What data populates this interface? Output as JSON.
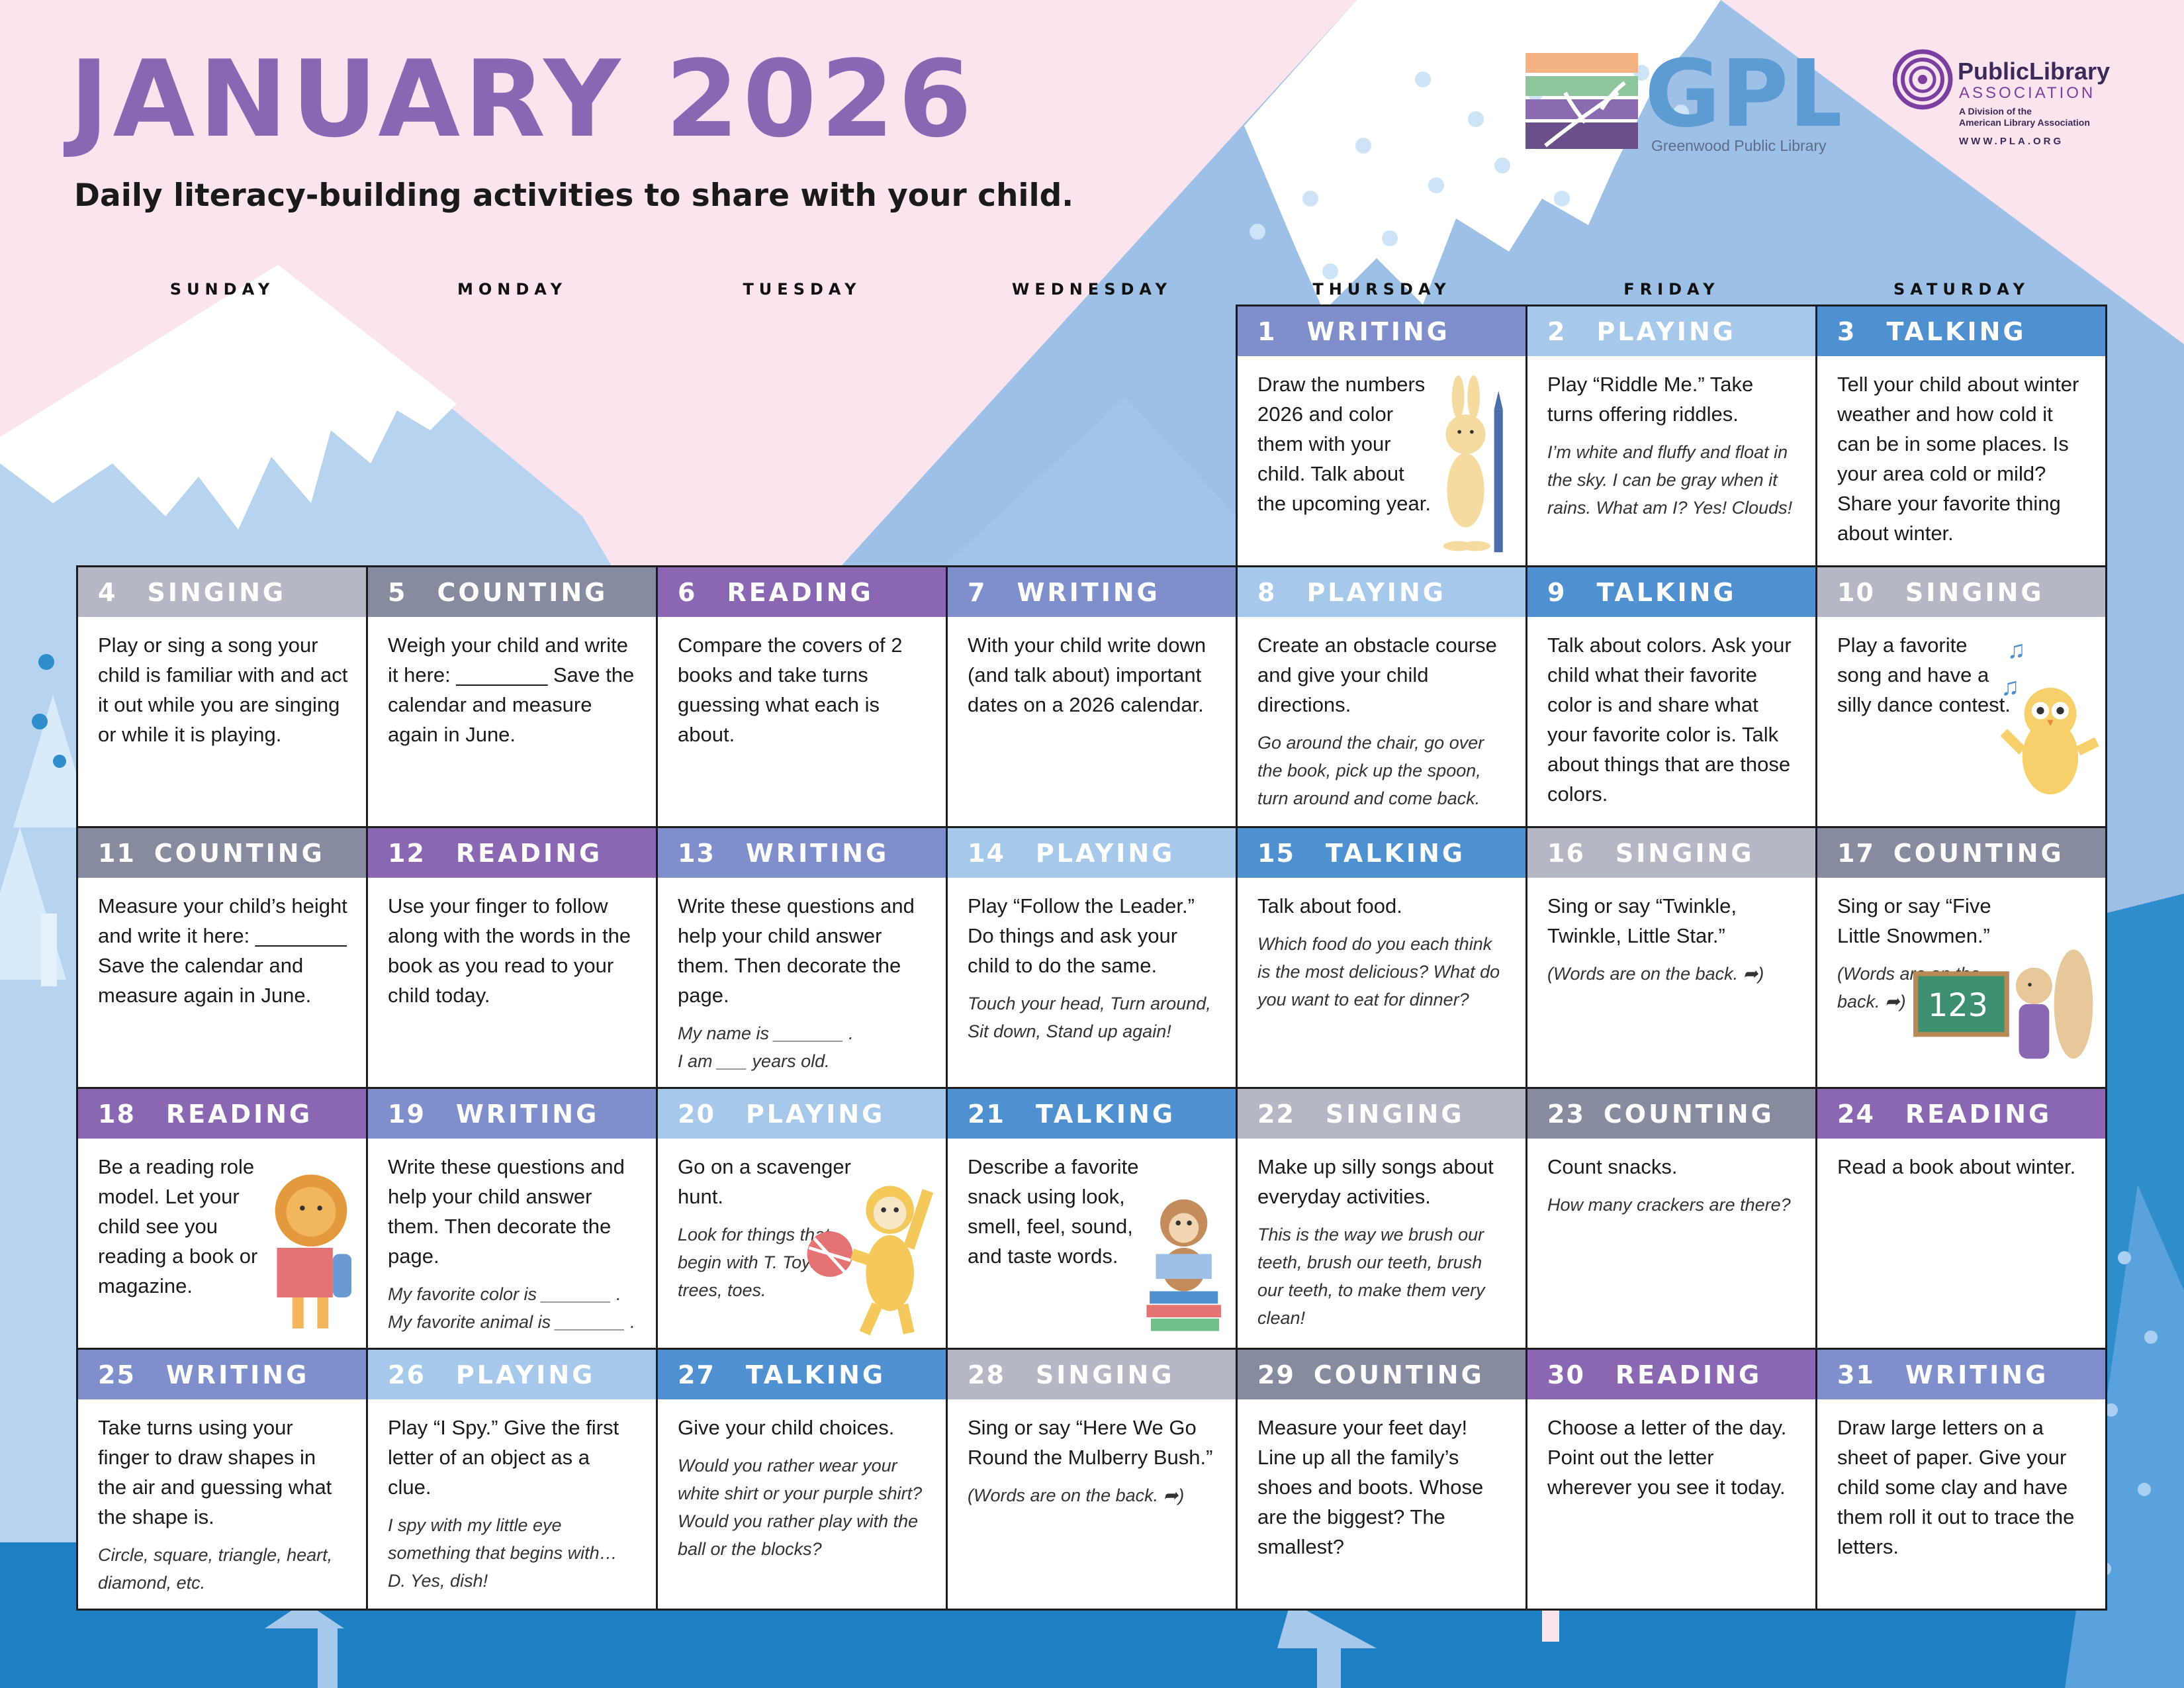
{
  "title": "JANUARY 2026",
  "subtitle": "Daily literacy-building activities to share with your child.",
  "logos": {
    "gpl": {
      "letters": "GPL",
      "name": "Greenwood Public Library"
    },
    "pla": {
      "name_line1": "PublicLibrary",
      "name_line2": "ASSOCIATION",
      "tagline1": "A Division of the",
      "tagline2": "American Library Association",
      "url": "WWW.PLA.ORG"
    }
  },
  "weekdays": [
    "SUNDAY",
    "MONDAY",
    "TUESDAY",
    "WEDNESDAY",
    "THURSDAY",
    "FRIDAY",
    "SATURDAY"
  ],
  "colors": {
    "writing": "#7f8fcc",
    "playing": "#a6c8ea",
    "talking": "#4e90d0",
    "singing": "#b5b7c4",
    "counting": "#878b9f",
    "reading": "#8a66b3",
    "title": "#8a66b3"
  },
  "days": [
    {
      "num": "1",
      "category": "WRITING",
      "text": "Draw the numbers 2026 and color them with your child. Talk about the upcoming year.",
      "italic": "",
      "illustration": "bunny-with-pencil-illustration"
    },
    {
      "num": "2",
      "category": "PLAYING",
      "text": "Play “Riddle Me.” Take turns offering riddles.",
      "italic": "I’m white and fluffy and float in the sky. I can be gray when it rains. What am I? Yes! Clouds!"
    },
    {
      "num": "3",
      "category": "TALKING",
      "text": "Tell your child about winter weather and how cold it can be in some places. Is your area cold or mild? Share your favorite thing about winter.",
      "italic": ""
    },
    {
      "num": "4",
      "category": "SINGING",
      "text": "Play or sing a song your child is familiar with and act it out while you are singing or while it is playing.",
      "italic": ""
    },
    {
      "num": "5",
      "category": "COUNTING",
      "text": "Weigh your child and write it here: ________ Save the calendar and measure again in June.",
      "italic": ""
    },
    {
      "num": "6",
      "category": "READING",
      "text": "Compare the covers of 2 books and take turns guessing what each is about.",
      "italic": ""
    },
    {
      "num": "7",
      "category": "WRITING",
      "text": "With your child write down (and talk about) important dates on a 2026 calendar.",
      "italic": ""
    },
    {
      "num": "8",
      "category": "PLAYING",
      "text": "Create an obstacle course and give your child directions.",
      "italic": "Go around the chair, go over the book, pick up the spoon, turn around and come back."
    },
    {
      "num": "9",
      "category": "TALKING",
      "text": "Talk about colors. Ask your child what their favorite color is and share what your favorite color is. Talk about things that are those colors.",
      "italic": ""
    },
    {
      "num": "10",
      "category": "SINGING",
      "text": "Play a favorite song and have a silly dance contest.",
      "italic": "",
      "illustration": "dancing-owl-illustration"
    },
    {
      "num": "11",
      "category": "COUNTING",
      "text": "Measure your child’s height and write it here: ________ Save the calendar and measure again in June.",
      "italic": ""
    },
    {
      "num": "12",
      "category": "READING",
      "text": "Use your finger to follow along with the words in the book as you read to your child today.",
      "italic": ""
    },
    {
      "num": "13",
      "category": "WRITING",
      "text": "Write these questions and help your child answer them. Then decorate the page.",
      "italic": "My name is _______ .\nI am ___  years old."
    },
    {
      "num": "14",
      "category": "PLAYING",
      "text": "Play “Follow the Leader.” Do things and ask your child to do the same.",
      "italic": "Touch your head, Turn around, Sit down, Stand up again!"
    },
    {
      "num": "15",
      "category": "TALKING",
      "text": "Talk about food.",
      "italic": "Which food do you each think is the most delicious? What do you want to eat for dinner?"
    },
    {
      "num": "16",
      "category": "SINGING",
      "text": "Sing or say “Twinkle, Twinkle, Little Star.”",
      "italic": "(Words are on the back. ➦)"
    },
    {
      "num": "17",
      "category": "COUNTING",
      "text": "Sing or say “Five Little Snowmen.”",
      "italic": "(Words are on the back. ➦)",
      "illustration": "squirrel-with-chalkboard-illustration",
      "board": "123"
    },
    {
      "num": "18",
      "category": "READING",
      "text": "Be a reading role model. Let your child see you reading a book or magazine.",
      "italic": "",
      "illustration": "lion-reading-illustration"
    },
    {
      "num": "19",
      "category": "WRITING",
      "text": "Write these questions and help your child answer them. Then decorate the page.",
      "italic": "My favorite color is _______ .\nMy favorite animal is _______ ."
    },
    {
      "num": "20",
      "category": "PLAYING",
      "text": "Go on a scavenger hunt.",
      "italic": "Look for things that begin with T. Toys, trees, toes.",
      "illustration": "sloth-with-ball-illustration"
    },
    {
      "num": "21",
      "category": "TALKING",
      "text": "Describe a favorite snack using look, smell, feel, sound, and taste words.",
      "italic": "",
      "illustration": "monkey-on-books-illustration"
    },
    {
      "num": "22",
      "category": "SINGING",
      "text": "Make up silly songs about everyday activities.",
      "italic": "This is the way we brush our teeth, brush our teeth, brush our teeth, to make them very clean!"
    },
    {
      "num": "23",
      "category": "COUNTING",
      "text": "Count snacks.",
      "italic": "How many crackers are there?"
    },
    {
      "num": "24",
      "category": "READING",
      "text": "Read a book about winter.",
      "italic": ""
    },
    {
      "num": "25",
      "category": "WRITING",
      "text": "Take turns using your finger to draw shapes in the air and guessing what the shape is.",
      "italic": "Circle, square, triangle, heart, diamond, etc."
    },
    {
      "num": "26",
      "category": "PLAYING",
      "text": "Play “I Spy.” Give the first letter of an object as a clue.",
      "italic": "I spy with my little eye something that begins with… D. Yes, dish!"
    },
    {
      "num": "27",
      "category": "TALKING",
      "text": "Give your child choices.",
      "italic": "Would you rather wear your white shirt or your purple shirt? Would you rather play with the ball or the blocks?"
    },
    {
      "num": "28",
      "category": "SINGING",
      "text": "Sing or say “Here We Go Round the Mulberry Bush.”",
      "italic": "(Words are on the back. ➦)"
    },
    {
      "num": "29",
      "category": "COUNTING",
      "text": "Measure your feet day! Line up all the family’s shoes and boots. Whose are the biggest? The smallest?",
      "italic": ""
    },
    {
      "num": "30",
      "category": "READING",
      "text": "Choose a letter of the day. Point out the letter wherever you see it today.",
      "italic": ""
    },
    {
      "num": "31",
      "category": "WRITING",
      "text": "Draw large letters on a sheet of paper. Give your child some clay and have them roll it out to trace the letters.",
      "italic": ""
    }
  ]
}
